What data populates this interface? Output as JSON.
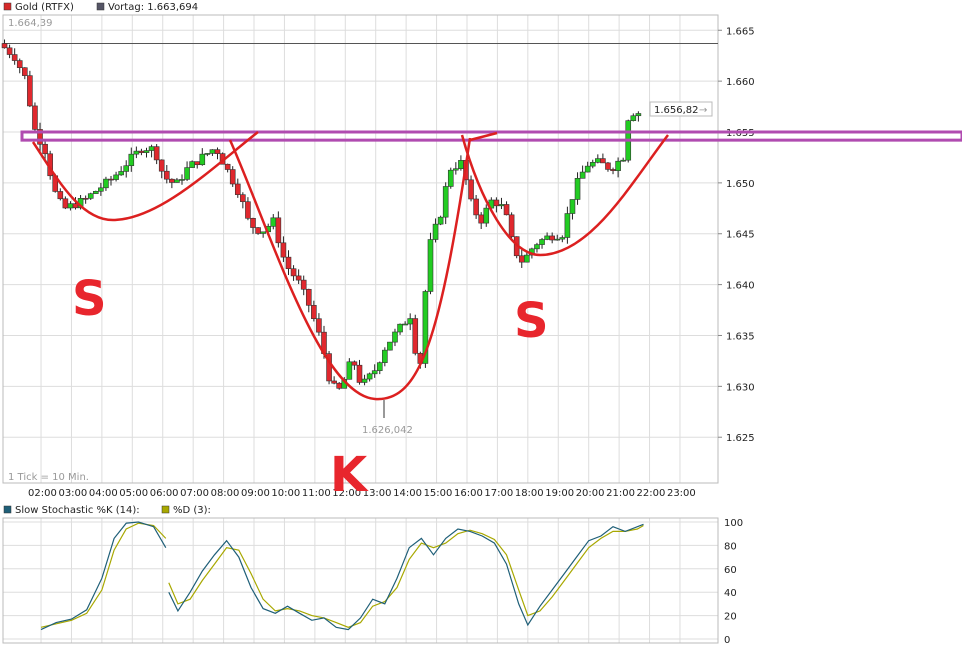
{
  "legend": {
    "main_series": "Gold (RTFX)",
    "main_color": "#d62a2a",
    "prev_close_label": "Vortag: 1.663,694",
    "prev_color": "#555566"
  },
  "tick_note": "1 Tick = 10 Min.",
  "high_label": "1.664,39",
  "low_label": "1.626,042",
  "last_price_label": "1.656,82",
  "annotations": [
    "S",
    "K",
    "S"
  ],
  "colors": {
    "up": "#22cc22",
    "down": "#e0282e",
    "wick": "#222222",
    "neckline": "#b04bb0",
    "pattern": "#dc2020",
    "stoch_k": "#1f5f78",
    "stoch_d": "#a8a800"
  },
  "chart_data": [
    {
      "type": "candlestick",
      "series_name": "Gold (RTFX)",
      "x_ticks": [
        "02:00",
        "03:00",
        "04:00",
        "05:00",
        "06:00",
        "07:00",
        "08:00",
        "09:00",
        "10:00",
        "11:00",
        "12:00",
        "13:00",
        "14:00",
        "15:00",
        "16:00",
        "17:00",
        "18:00",
        "19:00",
        "20:00",
        "21:00",
        "22:00",
        "23:00"
      ],
      "y_ticks": [
        "1.625",
        "1.630",
        "1.635",
        "1.640",
        "1.645",
        "1.650",
        "1.655",
        "1.660",
        "1.665"
      ],
      "ylim": [
        1620.5,
        1666.5
      ],
      "x_range_hours": [
        0.75,
        24.25
      ],
      "previous_close": 1663.694,
      "neckline_band": [
        1654.2,
        1655.0
      ],
      "candles_hourly_path": [
        [
          0.8,
          1663.7
        ],
        [
          1.0,
          1663.2
        ],
        [
          1.3,
          1662.4
        ],
        [
          1.7,
          1660.0
        ],
        [
          1.9,
          1655.6
        ],
        [
          2.3,
          1653.2
        ],
        [
          2.6,
          1649.2
        ],
        [
          2.9,
          1647.4
        ],
        [
          3.2,
          1647.8
        ],
        [
          3.6,
          1648.3
        ],
        [
          4.0,
          1649.3
        ],
        [
          4.5,
          1650.4
        ],
        [
          5.0,
          1652.0
        ],
        [
          5.5,
          1653.5
        ],
        [
          5.9,
          1653.3
        ],
        [
          6.2,
          1650.6
        ],
        [
          6.6,
          1649.8
        ],
        [
          7.0,
          1651.5
        ],
        [
          7.5,
          1652.6
        ],
        [
          7.9,
          1653.5
        ],
        [
          8.3,
          1651.2
        ],
        [
          8.7,
          1648.9
        ],
        [
          9.0,
          1646.0
        ],
        [
          9.4,
          1645.2
        ],
        [
          9.8,
          1646.2
        ],
        [
          10.2,
          1642.0
        ],
        [
          10.6,
          1640.4
        ],
        [
          11.0,
          1637.8
        ],
        [
          11.4,
          1634.2
        ],
        [
          11.7,
          1630.0
        ],
        [
          12.0,
          1629.6
        ],
        [
          12.4,
          1632.8
        ],
        [
          12.7,
          1630.0
        ],
        [
          13.1,
          1631.4
        ],
        [
          13.5,
          1634.0
        ],
        [
          13.9,
          1635.5
        ],
        [
          14.3,
          1637.0
        ],
        [
          14.6,
          1631.0
        ],
        [
          14.9,
          1643.5
        ],
        [
          15.3,
          1647.0
        ],
        [
          15.6,
          1651.4
        ],
        [
          16.0,
          1652.0
        ],
        [
          16.3,
          1648.0
        ],
        [
          16.6,
          1646.2
        ],
        [
          17.0,
          1648.4
        ],
        [
          17.4,
          1647.4
        ],
        [
          17.7,
          1643.5
        ],
        [
          18.0,
          1642.2
        ],
        [
          18.4,
          1644.0
        ],
        [
          18.9,
          1644.8
        ],
        [
          19.3,
          1645.0
        ],
        [
          19.7,
          1649.4
        ],
        [
          20.1,
          1651.8
        ],
        [
          20.5,
          1652.0
        ],
        [
          20.9,
          1651.4
        ],
        [
          21.3,
          1652.6
        ],
        [
          21.5,
          1657.2
        ],
        [
          21.7,
          1656.82
        ]
      ],
      "high": 1664.39,
      "low": 1626.042,
      "last": 1656.82
    },
    {
      "type": "line",
      "title": "",
      "series": [
        {
          "name": "Slow Stochastic %K (14):",
          "color": "#1f5f78"
        },
        {
          "name": "%D (3):",
          "color": "#a8a800"
        }
      ],
      "y_ticks": [
        "0",
        "20",
        "40",
        "60",
        "80",
        "100"
      ],
      "ylim": [
        0,
        100
      ],
      "k_values": [
        [
          2.0,
          8
        ],
        [
          2.5,
          14
        ],
        [
          3.0,
          17
        ],
        [
          3.5,
          25
        ],
        [
          4.0,
          52
        ],
        [
          4.4,
          86
        ],
        [
          4.8,
          99
        ],
        [
          5.2,
          100
        ],
        [
          5.7,
          96
        ],
        [
          6.1,
          78
        ],
        [
          null,
          null
        ],
        [
          6.2,
          40
        ],
        [
          6.5,
          24
        ],
        [
          6.9,
          40
        ],
        [
          7.3,
          58
        ],
        [
          7.7,
          72
        ],
        [
          8.1,
          84
        ],
        [
          8.5,
          70
        ],
        [
          8.9,
          44
        ],
        [
          9.3,
          26
        ],
        [
          9.7,
          22
        ],
        [
          10.1,
          28
        ],
        [
          10.5,
          22
        ],
        [
          10.9,
          16
        ],
        [
          11.3,
          18
        ],
        [
          11.7,
          10
        ],
        [
          12.1,
          8
        ],
        [
          12.5,
          18
        ],
        [
          12.9,
          34
        ],
        [
          13.3,
          30
        ],
        [
          13.7,
          52
        ],
        [
          14.1,
          78
        ],
        [
          14.5,
          86
        ],
        [
          14.9,
          72
        ],
        [
          15.3,
          86
        ],
        [
          15.7,
          94
        ],
        [
          16.1,
          92
        ],
        [
          16.5,
          88
        ],
        [
          16.9,
          82
        ],
        [
          17.3,
          64
        ],
        [
          17.7,
          30
        ],
        [
          18.0,
          12
        ],
        [
          18.4,
          28
        ],
        [
          18.8,
          42
        ],
        [
          19.2,
          56
        ],
        [
          19.6,
          70
        ],
        [
          20.0,
          84
        ],
        [
          20.4,
          88
        ],
        [
          20.8,
          96
        ],
        [
          21.2,
          92
        ],
        [
          21.6,
          96
        ],
        [
          21.8,
          98
        ]
      ],
      "d_values": [
        [
          2.0,
          10
        ],
        [
          2.5,
          13
        ],
        [
          3.0,
          16
        ],
        [
          3.5,
          22
        ],
        [
          4.0,
          42
        ],
        [
          4.4,
          76
        ],
        [
          4.8,
          94
        ],
        [
          5.2,
          99
        ],
        [
          5.7,
          97
        ],
        [
          6.1,
          86
        ],
        [
          null,
          null
        ],
        [
          6.2,
          48
        ],
        [
          6.5,
          30
        ],
        [
          6.9,
          34
        ],
        [
          7.3,
          50
        ],
        [
          7.7,
          64
        ],
        [
          8.1,
          78
        ],
        [
          8.5,
          76
        ],
        [
          8.9,
          56
        ],
        [
          9.3,
          34
        ],
        [
          9.7,
          24
        ],
        [
          10.1,
          26
        ],
        [
          10.5,
          24
        ],
        [
          10.9,
          20
        ],
        [
          11.3,
          18
        ],
        [
          11.7,
          14
        ],
        [
          12.1,
          10
        ],
        [
          12.5,
          14
        ],
        [
          12.9,
          28
        ],
        [
          13.3,
          32
        ],
        [
          13.7,
          44
        ],
        [
          14.1,
          68
        ],
        [
          14.5,
          82
        ],
        [
          14.9,
          78
        ],
        [
          15.3,
          82
        ],
        [
          15.7,
          90
        ],
        [
          16.1,
          93
        ],
        [
          16.5,
          90
        ],
        [
          16.9,
          85
        ],
        [
          17.3,
          72
        ],
        [
          17.7,
          42
        ],
        [
          18.0,
          20
        ],
        [
          18.4,
          24
        ],
        [
          18.8,
          36
        ],
        [
          19.2,
          50
        ],
        [
          19.6,
          64
        ],
        [
          20.0,
          78
        ],
        [
          20.4,
          86
        ],
        [
          20.8,
          92
        ],
        [
          21.2,
          92
        ],
        [
          21.6,
          94
        ],
        [
          21.8,
          97
        ]
      ]
    }
  ]
}
